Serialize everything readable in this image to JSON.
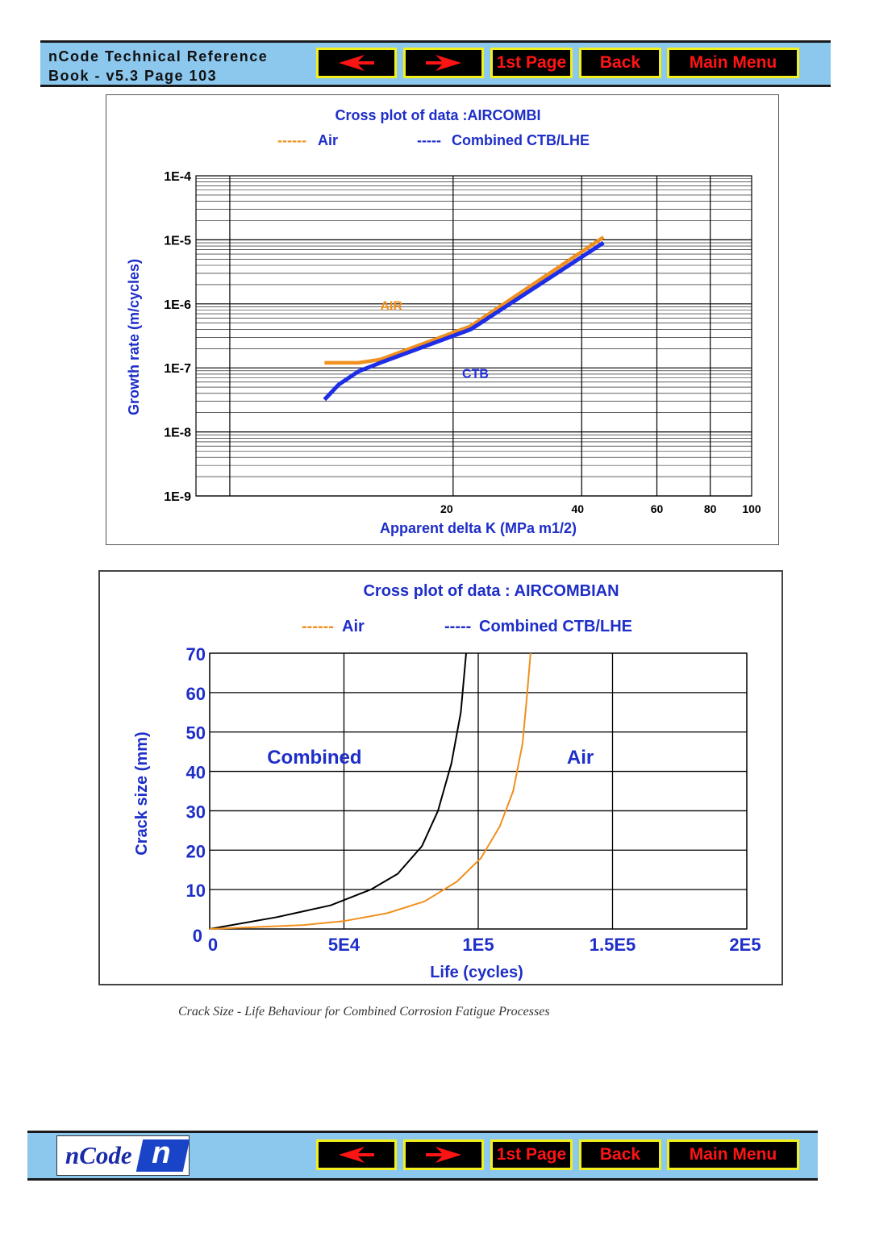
{
  "header": {
    "title_line1": "nCode Technical Reference",
    "title_line2": "Book - v5.3  Page 103"
  },
  "nav": {
    "prev_icon": "left-arrow-icon",
    "next_icon": "right-arrow-icon",
    "first_page": "1st Page",
    "back": "Back",
    "main_menu": "Main Menu"
  },
  "footer": {
    "logo_text": "nCode",
    "logo_mark": "n"
  },
  "colors": {
    "air": "#f0901e",
    "combined": "#1e2ee6",
    "combined_black": "#000000",
    "text_blue": "#1e2ec8",
    "nav_red": "#ff1414"
  },
  "caption": "Crack Size - Life Behaviour for Combined Corrosion Fatigue Processes",
  "chart_data": [
    {
      "type": "line",
      "title": "Cross plot of data :AIRCOMBI",
      "legend": [
        {
          "dash": "------",
          "name": "Air"
        },
        {
          "dash": "-----",
          "name": "Combined CTB/LHE"
        }
      ],
      "xlabel": "Apparent delta K (MPa m1/2)",
      "ylabel": "Growth rate (m/cycles)",
      "xscale": "log",
      "yscale": "log",
      "xlim": [
        5,
        100
      ],
      "ylim": [
        1e-09,
        0.0001
      ],
      "x_ticks": [
        {
          "value": 20,
          "label": "20"
        },
        {
          "value": 40,
          "label": "40"
        },
        {
          "value": 60,
          "label": "60"
        },
        {
          "value": 80,
          "label": "80"
        },
        {
          "value": 100,
          "label": "100"
        }
      ],
      "y_ticks": [
        {
          "value": 0.0001,
          "label": "1E-4"
        },
        {
          "value": 1e-05,
          "label": "1E-5"
        },
        {
          "value": 1e-06,
          "label": "1E-6"
        },
        {
          "value": 1e-07,
          "label": "1E-7"
        },
        {
          "value": 1e-08,
          "label": "1E-8"
        },
        {
          "value": 1e-09,
          "label": "1E-9"
        }
      ],
      "series": [
        {
          "name": "Air",
          "x": [
            10,
            12,
            13.5,
            22,
            45
          ],
          "y": [
            1.2e-07,
            1.2e-07,
            1.35e-07,
            4.5e-07,
            1.1e-05
          ]
        },
        {
          "name": "Combined CTB/LHE",
          "x": [
            10,
            10.8,
            12,
            13.5,
            22,
            45
          ],
          "y": [
            3.2e-08,
            5.5e-08,
            8.8e-08,
            1.2e-07,
            4e-07,
            9e-06
          ]
        }
      ],
      "annotations": [
        {
          "text": "AIR",
          "x": 13.5,
          "y": 8e-07,
          "series": "Air"
        },
        {
          "text": "CTB",
          "x": 21,
          "y": 7e-08,
          "series": "Combined CTB/LHE"
        }
      ]
    },
    {
      "type": "line",
      "title": "Cross plot of data : AIRCOMBIAN",
      "legend": [
        {
          "dash": "------",
          "name": "Air"
        },
        {
          "dash": "-----",
          "name": "Combined CTB/LHE"
        }
      ],
      "xlabel": "Life (cycles)",
      "ylabel": "Crack size (mm)",
      "xlim": [
        0,
        200000
      ],
      "ylim": [
        0,
        70
      ],
      "x_ticks": [
        {
          "value": 0,
          "label": "0"
        },
        {
          "value": 50000,
          "label": "5E4"
        },
        {
          "value": 100000,
          "label": "1E5"
        },
        {
          "value": 150000,
          "label": "1.5E5"
        },
        {
          "value": 200000,
          "label": "2E5"
        }
      ],
      "y_ticks": [
        {
          "value": 0,
          "label": "0"
        },
        {
          "value": 10,
          "label": "10"
        },
        {
          "value": 20,
          "label": "20"
        },
        {
          "value": 30,
          "label": "30"
        },
        {
          "value": 40,
          "label": "40"
        },
        {
          "value": 50,
          "label": "50"
        },
        {
          "value": 60,
          "label": "60"
        },
        {
          "value": 70,
          "label": "70"
        }
      ],
      "series": [
        {
          "name": "Combined",
          "x": [
            0,
            25000,
            45000,
            60000,
            70000,
            79000,
            85000,
            90000,
            93500,
            95500
          ],
          "y": [
            0,
            3,
            6,
            10,
            14,
            21,
            30,
            42,
            55,
            70
          ]
        },
        {
          "name": "Air",
          "x": [
            0,
            35000,
            50000,
            66000,
            80000,
            92000,
            101000,
            108000,
            113000,
            116500,
            118000,
            119500
          ],
          "y": [
            0,
            1,
            2,
            4,
            7,
            12,
            18,
            26,
            35,
            47,
            58,
            70
          ]
        }
      ],
      "annotations": [
        {
          "text": "Combined",
          "x": 39000,
          "y": 42,
          "series": "Combined"
        },
        {
          "text": "Air",
          "x": 138000,
          "y": 42,
          "series": "Air"
        }
      ]
    }
  ]
}
